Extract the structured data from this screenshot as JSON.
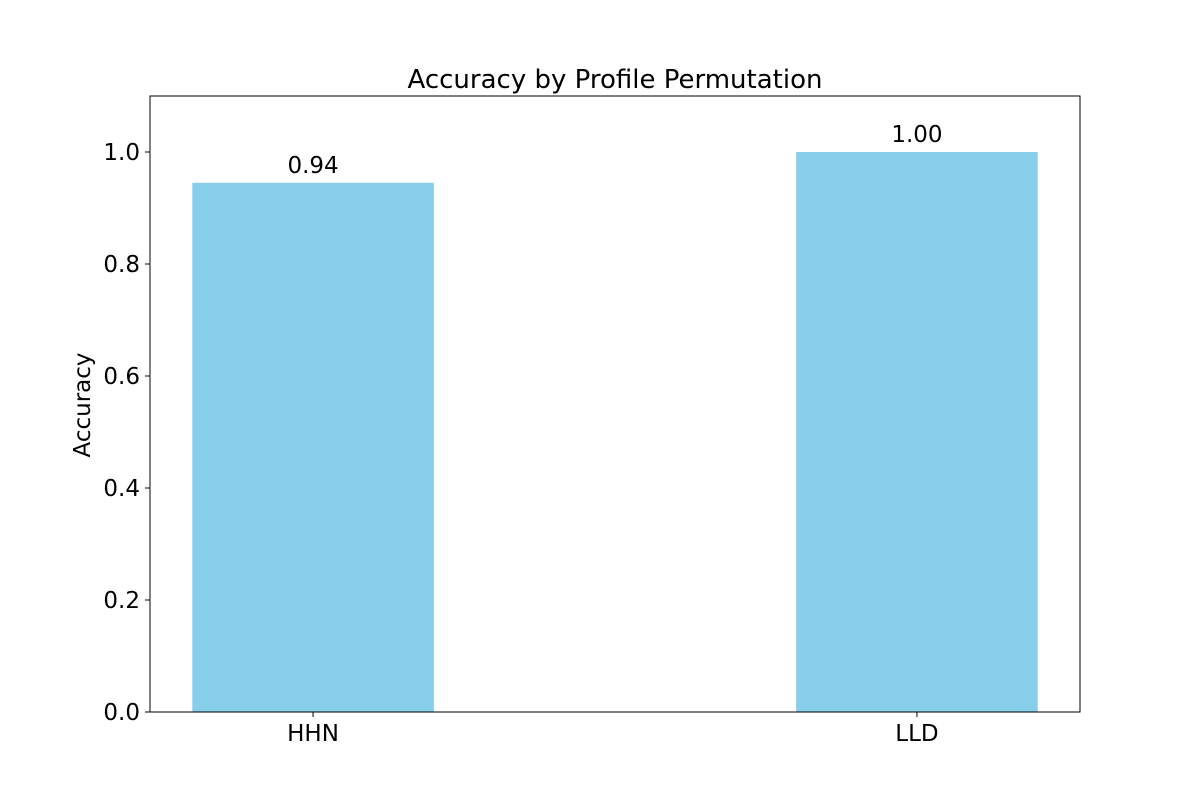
{
  "chart_data": {
    "type": "bar",
    "title": "Accuracy by Profile Permutation",
    "xlabel": "",
    "ylabel": "Accuracy",
    "categories": [
      "HHN",
      "LLD"
    ],
    "values": [
      0.945,
      1.0
    ],
    "data_labels": [
      "0.94",
      "1.00"
    ],
    "ylim": [
      0,
      1.1
    ],
    "yticks": [
      0.0,
      0.2,
      0.4,
      0.6,
      0.8,
      1.0
    ],
    "ytick_labels": [
      "0.0",
      "0.2",
      "0.4",
      "0.6",
      "0.8",
      "1.0"
    ],
    "grid": false,
    "bar_color": "#87CEEB"
  }
}
